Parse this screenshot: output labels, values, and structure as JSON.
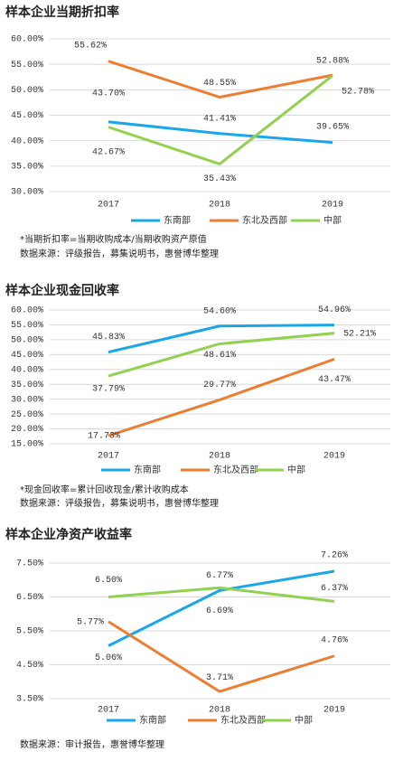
{
  "chart_data": [
    {
      "type": "line",
      "title": "样本企业当期折扣率",
      "categories": [
        "2017",
        "2018",
        "2019"
      ],
      "ylim": [
        30,
        60
      ],
      "yticks": [
        {
          "value": 30,
          "label": "30.00%"
        },
        {
          "value": 35,
          "label": "35.00%"
        },
        {
          "value": 40,
          "label": "40.00%"
        },
        {
          "value": 45,
          "label": "45.00%"
        },
        {
          "value": 50,
          "label": "50.00%"
        },
        {
          "value": 55,
          "label": "55.00%"
        },
        {
          "value": 60,
          "label": "60.00%"
        }
      ],
      "grid": true,
      "legend": "bottom",
      "series": [
        {
          "name": "东南部",
          "color": "#1aa7ea",
          "values": [
            43.7,
            41.41,
            39.65
          ],
          "value_labels": [
            "43.70%",
            "41.41%",
            "39.65%"
          ]
        },
        {
          "name": "东北及西部",
          "color": "#ed7d31",
          "values": [
            55.62,
            48.55,
            52.88
          ],
          "value_labels": [
            "55.62%",
            "48.55%",
            "52.88%"
          ]
        },
        {
          "name": "中部",
          "color": "#92d050",
          "values": [
            42.67,
            35.43,
            52.78
          ],
          "value_labels": [
            "42.67%",
            "35.43%",
            "52.78%"
          ]
        }
      ],
      "notes": [
        "*当期折扣率=当期收购成本/当期收购资产原值",
        "数据来源：评级报告，募集说明书，惠誉博华整理"
      ]
    },
    {
      "type": "line",
      "title": "样本企业现金回收率",
      "categories": [
        "2017",
        "2018",
        "2019"
      ],
      "ylim": [
        15,
        60
      ],
      "yticks": [
        {
          "value": 15,
          "label": "15.00%"
        },
        {
          "value": 20,
          "label": "20.00%"
        },
        {
          "value": 25,
          "label": "25.00%"
        },
        {
          "value": 30,
          "label": "30.00%"
        },
        {
          "value": 35,
          "label": "35.00%"
        },
        {
          "value": 40,
          "label": "40.00%"
        },
        {
          "value": 45,
          "label": "45.00%"
        },
        {
          "value": 50,
          "label": "50.00%"
        },
        {
          "value": 55,
          "label": "55.00%"
        },
        {
          "value": 60,
          "label": "60.00%"
        }
      ],
      "grid": true,
      "legend": "bottom",
      "series": [
        {
          "name": "东南部",
          "color": "#1aa7ea",
          "values": [
            45.83,
            54.6,
            54.96
          ],
          "value_labels": [
            "45.83%",
            "54.60%",
            "54.96%"
          ]
        },
        {
          "name": "东北及西部",
          "color": "#ed7d31",
          "values": [
            17.73,
            29.77,
            43.47
          ],
          "value_labels": [
            "17.73%",
            "29.77%",
            "43.47%"
          ]
        },
        {
          "name": "中部",
          "color": "#92d050",
          "values": [
            37.79,
            48.61,
            52.21
          ],
          "value_labels": [
            "37.79%",
            "48.61%",
            "52.21%"
          ]
        }
      ],
      "notes": [
        "*现金回收率=累计回收现金/累计收购成本",
        "数据来源：评级报告，募集说明书，惠誉博华整理"
      ]
    },
    {
      "type": "line",
      "title": "样本企业净资产收益率",
      "categories": [
        "2017",
        "2018",
        "2019"
      ],
      "ylim": [
        3.5,
        7.5
      ],
      "yticks": [
        {
          "value": 3.5,
          "label": "3.50%"
        },
        {
          "value": 4.5,
          "label": "4.50%"
        },
        {
          "value": 5.5,
          "label": "5.50%"
        },
        {
          "value": 6.5,
          "label": "6.50%"
        },
        {
          "value": 7.5,
          "label": "7.50%"
        }
      ],
      "grid": true,
      "legend": "bottom",
      "series": [
        {
          "name": "东南部",
          "color": "#1aa7ea",
          "values": [
            5.06,
            6.69,
            7.26
          ],
          "value_labels": [
            "5.06%",
            "6.69%",
            "7.26%"
          ]
        },
        {
          "name": "东北及西部",
          "color": "#ed7d31",
          "values": [
            5.77,
            3.71,
            4.76
          ],
          "value_labels": [
            "5.77%",
            "3.71%",
            "4.76%"
          ]
        },
        {
          "name": "中部",
          "color": "#92d050",
          "values": [
            6.5,
            6.77,
            6.37
          ],
          "value_labels": [
            "6.50%",
            "6.77%",
            "6.37%"
          ]
        }
      ],
      "notes": [
        "数据来源：审计报告，惠誉博华整理"
      ]
    }
  ]
}
